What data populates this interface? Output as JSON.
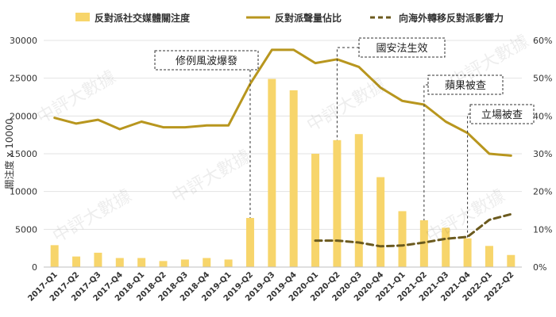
{
  "watermark": "中評大數據",
  "chart_data": {
    "type": "bar+line",
    "categories": [
      "2017-Q1",
      "2017-Q2",
      "2017-Q3",
      "2017-Q4",
      "2018-Q1",
      "2018-Q2",
      "2018-Q3",
      "2018-Q4",
      "2019-Q1",
      "2019-Q2",
      "2019-Q3",
      "2019-Q4",
      "2020-Q1",
      "2020-Q2",
      "2020-Q3",
      "2020-Q4",
      "2021-Q1",
      "2021-Q2",
      "2021-Q3",
      "2021-Q4",
      "2022-Q1",
      "2022-Q2"
    ],
    "ylabel_left": "關注度 x 10000",
    "ylim_left": [
      0,
      30000
    ],
    "yticks_left": [
      "0",
      "5000",
      "10000",
      "15000",
      "20000",
      "25000",
      "30000"
    ],
    "ylim_right": [
      0,
      60
    ],
    "yticks_right": [
      "0%",
      "10%",
      "20%",
      "30%",
      "40%",
      "50%",
      "60%"
    ],
    "legend_position": "top",
    "series": [
      {
        "name": "反對派社交媒體關注度",
        "kind": "bar",
        "axis": "left",
        "color": "#F7D56B",
        "values": [
          2900,
          1400,
          1900,
          1200,
          1200,
          800,
          1000,
          1200,
          1000,
          6500,
          24900,
          23400,
          15000,
          16800,
          17600,
          11900,
          7400,
          6200,
          5200,
          3800,
          2800,
          1600
        ]
      },
      {
        "name": "反對派聲量佔比",
        "kind": "line",
        "axis": "right",
        "color": "#B8961E",
        "values": [
          39.5,
          38.0,
          39.0,
          36.5,
          38.5,
          37.0,
          37.0,
          37.5,
          37.5,
          48.5,
          57.5,
          57.5,
          54.0,
          55.0,
          53.0,
          47.5,
          44.0,
          43.0,
          38.5,
          35.5,
          30.0,
          29.5
        ]
      },
      {
        "name": "向海外轉移反對派影響力",
        "kind": "line-dashed",
        "axis": "right",
        "color": "#6B5A1E",
        "values": [
          null,
          null,
          null,
          null,
          null,
          null,
          null,
          null,
          null,
          null,
          null,
          null,
          7.0,
          7.0,
          6.5,
          5.5,
          5.7,
          6.5,
          7.5,
          8.0,
          12.5,
          14.0
        ]
      }
    ],
    "annotations": [
      {
        "text": "修例風波爆發",
        "category_index": 9
      },
      {
        "text": "國安法生效",
        "category_index": 13
      },
      {
        "text": "蘋果被查",
        "category_index": 17
      },
      {
        "text": "立場被查",
        "category_index": 19
      }
    ]
  }
}
